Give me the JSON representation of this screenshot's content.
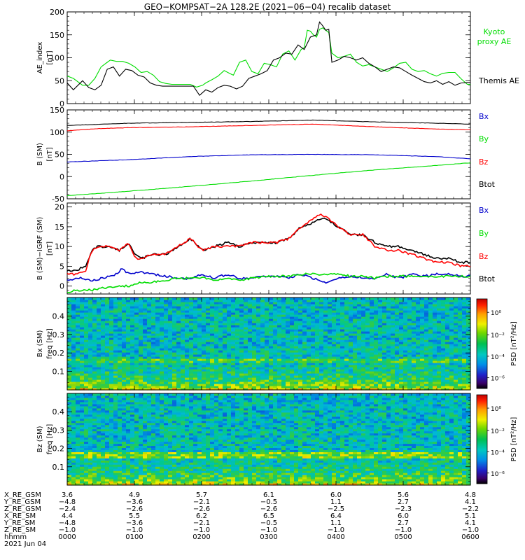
{
  "title": "GEO−KOMPSAT−2A 128.2E (2021−06−04) recalib dataset",
  "colors": {
    "black": "#000000",
    "red": "#ff0000",
    "green": "#00dd00",
    "blue": "#0000cc"
  },
  "chart_data": [
    {
      "type": "line",
      "ylabel_lines": [
        "AE_index",
        "[nT]"
      ],
      "ylim": [
        0,
        200
      ],
      "yticks": [
        0,
        50,
        100,
        150,
        200
      ],
      "xlim": [
        0,
        6.55
      ],
      "legend": [
        "Kyoto proxy AE",
        "Themis AE"
      ],
      "series": [
        {
          "name": "Kyoto proxy AE",
          "color": "#00dd00",
          "x": [
            0.0,
            0.1,
            0.25,
            0.35,
            0.45,
            0.55,
            0.65,
            0.7,
            0.8,
            0.9,
            1.0,
            1.1,
            1.2,
            1.3,
            1.4,
            1.5,
            1.6,
            1.7,
            1.8,
            1.9,
            2.0,
            2.1,
            2.2,
            2.25,
            2.35,
            2.45,
            2.55,
            2.65,
            2.7,
            2.8,
            2.9,
            3.0,
            3.1,
            3.2,
            3.3,
            3.4,
            3.5,
            3.6,
            3.7,
            3.8,
            3.85,
            3.9,
            3.95,
            4.0,
            4.05,
            4.1,
            4.15,
            4.2,
            4.25,
            4.3,
            4.4,
            4.5,
            4.6,
            4.7,
            4.8,
            4.9,
            5.0,
            5.1,
            5.2,
            5.3,
            5.4,
            5.5,
            5.6,
            5.7,
            5.8,
            5.9,
            6.0,
            6.1,
            6.2,
            6.3,
            6.4,
            6.5,
            6.55
          ],
          "y": [
            60,
            55,
            40,
            40,
            55,
            80,
            90,
            95,
            92,
            92,
            88,
            80,
            68,
            70,
            62,
            48,
            44,
            42,
            42,
            42,
            42,
            36,
            40,
            45,
            52,
            60,
            72,
            65,
            62,
            90,
            95,
            70,
            65,
            88,
            85,
            80,
            108,
            115,
            95,
            118,
            122,
            160,
            158,
            150,
            145,
            162,
            165,
            160,
            155,
            110,
            100,
            103,
            108,
            90,
            82,
            85,
            80,
            75,
            70,
            78,
            88,
            90,
            75,
            70,
            72,
            65,
            60,
            66,
            68,
            68,
            54,
            42,
            42
          ]
        },
        {
          "name": "Themis AE",
          "color": "#000000",
          "x": [
            0.0,
            0.1,
            0.25,
            0.35,
            0.45,
            0.55,
            0.65,
            0.75,
            0.85,
            0.95,
            1.05,
            1.15,
            1.25,
            1.35,
            1.45,
            1.55,
            1.65,
            1.75,
            1.85,
            1.95,
            2.05,
            2.15,
            2.25,
            2.35,
            2.45,
            2.55,
            2.65,
            2.75,
            2.85,
            2.95,
            3.05,
            3.15,
            3.25,
            3.35,
            3.45,
            3.55,
            3.65,
            3.75,
            3.85,
            3.95,
            4.05,
            4.1,
            4.15,
            4.2,
            4.25,
            4.3,
            4.4,
            4.5,
            4.6,
            4.7,
            4.8,
            4.9,
            5.0,
            5.1,
            5.2,
            5.3,
            5.4,
            5.5,
            5.6,
            5.7,
            5.8,
            5.9,
            6.0,
            6.1,
            6.2,
            6.3,
            6.4,
            6.5,
            6.55
          ],
          "y": [
            45,
            30,
            50,
            35,
            30,
            40,
            75,
            80,
            60,
            75,
            72,
            62,
            58,
            45,
            40,
            38,
            38,
            38,
            38,
            38,
            38,
            18,
            30,
            25,
            35,
            40,
            38,
            32,
            38,
            55,
            60,
            65,
            72,
            95,
            100,
            110,
            108,
            128,
            118,
            145,
            150,
            178,
            170,
            160,
            162,
            90,
            95,
            103,
            100,
            95,
            100,
            88,
            80,
            70,
            75,
            80,
            78,
            70,
            62,
            55,
            48,
            45,
            50,
            42,
            48,
            40,
            45,
            46,
            46
          ]
        }
      ]
    },
    {
      "type": "line",
      "ylabel_lines": [
        "B (SM)",
        "[nT]"
      ],
      "ylim": [
        -50,
        150
      ],
      "yticks": [
        -50,
        0,
        50,
        100,
        150
      ],
      "xlim": [
        0,
        6.55
      ],
      "legend": [
        "Bx",
        "By",
        "Bz",
        "Btot"
      ],
      "series": [
        {
          "name": "Btot",
          "color": "#000000",
          "x": [
            0,
            1,
            2,
            3,
            4,
            5,
            6,
            6.55
          ],
          "y": [
            115,
            120,
            122,
            124,
            127,
            123,
            120,
            118
          ]
        },
        {
          "name": "Bz",
          "color": "#ff0000",
          "x": [
            0,
            0.5,
            1,
            2,
            3,
            4,
            5,
            6,
            6.55
          ],
          "y": [
            103,
            108,
            110,
            112,
            115,
            118,
            112,
            107,
            105
          ]
        },
        {
          "name": "Bx",
          "color": "#0000cc",
          "x": [
            0,
            1,
            2,
            3,
            4,
            5,
            6,
            6.55
          ],
          "y": [
            33,
            38,
            45,
            49,
            50,
            49,
            45,
            40
          ]
        },
        {
          "name": "By",
          "color": "#00dd00",
          "x": [
            0,
            1,
            2,
            3,
            4,
            5,
            6,
            6.55
          ],
          "y": [
            -43,
            -33,
            -22,
            -10,
            3,
            15,
            25,
            31
          ]
        }
      ]
    },
    {
      "type": "line",
      "ylabel_lines": [
        "B (SM)−IGRF (SM)",
        "[nT]"
      ],
      "ylim": [
        -2,
        21
      ],
      "yticks": [
        0,
        5,
        10,
        15,
        20
      ],
      "xlim": [
        0,
        6.55
      ],
      "legend": [
        "Bx",
        "By",
        "Bz",
        "Btot"
      ],
      "series": [
        {
          "name": "Btot",
          "color": "#000000",
          "x": [
            0.0,
            0.15,
            0.3,
            0.4,
            0.5,
            0.7,
            0.85,
            1.0,
            1.1,
            1.2,
            1.4,
            1.6,
            1.8,
            2.0,
            2.2,
            2.4,
            2.6,
            2.8,
            3.0,
            3.2,
            3.4,
            3.6,
            3.8,
            4.0,
            4.1,
            4.2,
            4.4,
            4.6,
            4.8,
            5.0,
            5.2,
            5.4,
            5.6,
            5.8,
            6.0,
            6.2,
            6.4,
            6.55
          ],
          "y": [
            4,
            4,
            5,
            9,
            10,
            10,
            9,
            11,
            8,
            7,
            8,
            8,
            10,
            12,
            9,
            10,
            11,
            10,
            11,
            11,
            11,
            12,
            15,
            16,
            17,
            17,
            15,
            13,
            13,
            11,
            10,
            10,
            9,
            8,
            7,
            7,
            6,
            6
          ]
        },
        {
          "name": "Bz",
          "color": "#ff0000",
          "x": [
            0.0,
            0.15,
            0.3,
            0.4,
            0.5,
            0.7,
            0.85,
            1.0,
            1.1,
            1.2,
            1.4,
            1.6,
            1.8,
            2.0,
            2.2,
            2.4,
            2.6,
            2.8,
            3.0,
            3.2,
            3.4,
            3.6,
            3.8,
            4.0,
            4.1,
            4.2,
            4.4,
            4.6,
            4.8,
            5.0,
            5.2,
            5.4,
            5.6,
            5.8,
            6.0,
            6.2,
            6.4,
            6.55
          ],
          "y": [
            3,
            3,
            4,
            9,
            10,
            10,
            9,
            11,
            7,
            7,
            8,
            8,
            10,
            12,
            9,
            10,
            10,
            10,
            11,
            11,
            11,
            12,
            15,
            17,
            18,
            17.5,
            15,
            13,
            13,
            10,
            9,
            9,
            8,
            7,
            6,
            6,
            5,
            5
          ]
        },
        {
          "name": "Bx",
          "color": "#0000cc",
          "x": [
            0.0,
            0.2,
            0.4,
            0.6,
            0.8,
            0.9,
            1.0,
            1.2,
            1.4,
            1.6,
            1.8,
            2.0,
            2.2,
            2.4,
            2.6,
            2.8,
            3.0,
            3.2,
            3.4,
            3.6,
            3.8,
            4.0,
            4.2,
            4.4,
            4.6,
            4.8,
            5.0,
            5.2,
            5.4,
            5.6,
            5.8,
            6.0,
            6.2,
            6.4,
            6.55
          ],
          "y": [
            1.5,
            2,
            1.5,
            2,
            3,
            4.5,
            3,
            3.5,
            3,
            2.5,
            2,
            2,
            3,
            2,
            3,
            2,
            2,
            2.5,
            2.5,
            2,
            3,
            2,
            1,
            2,
            2.5,
            2,
            2,
            3,
            2,
            3,
            2.5,
            3,
            3,
            2.5,
            2.5
          ]
        },
        {
          "name": "By",
          "color": "#00dd00",
          "x": [
            0.0,
            0.2,
            0.4,
            0.6,
            0.8,
            1.0,
            1.2,
            1.4,
            1.6,
            1.8,
            2.0,
            2.2,
            2.4,
            2.6,
            2.8,
            3.0,
            3.2,
            3.4,
            3.6,
            3.8,
            4.0,
            4.2,
            4.4,
            4.6,
            4.8,
            5.0,
            5.2,
            5.4,
            5.6,
            5.8,
            6.0,
            6.2,
            6.4,
            6.55
          ],
          "y": [
            -1.5,
            -1,
            -1,
            -0.5,
            0,
            0,
            1,
            1,
            1.5,
            2,
            2,
            2,
            1.5,
            2,
            1.5,
            2,
            2.5,
            2.5,
            2.5,
            3,
            3,
            3,
            3,
            2.5,
            2.5,
            2,
            2.5,
            2.5,
            2.5,
            2.5,
            2.5,
            2.5,
            2.5,
            2.5
          ]
        }
      ]
    },
    {
      "type": "heatmap",
      "ylabel_lines": [
        "Bx (SM)",
        "freq [Hz]"
      ],
      "ylim": [
        0,
        0.5
      ],
      "yticks": [
        0.1,
        0.2,
        0.3,
        0.4
      ],
      "xlim": [
        0,
        6.55
      ],
      "colorbar": {
        "label": "PSD [nT²/Hz]",
        "ticks": [
          "10⁰",
          "10⁻²",
          "10⁻⁴",
          "10⁻⁶"
        ]
      }
    },
    {
      "type": "heatmap",
      "ylabel_lines": [
        "Bz (SM)",
        "freq [Hz]"
      ],
      "ylim": [
        0,
        0.5
      ],
      "yticks": [
        0.1,
        0.2,
        0.3,
        0.4
      ],
      "xlim": [
        0,
        6.55
      ],
      "colorbar": {
        "label": "PSD [nT²/Hz]",
        "ticks": [
          "10⁰",
          "10⁻²",
          "10⁻⁴",
          "10⁻⁶"
        ]
      }
    }
  ],
  "orbit_table": {
    "rows": [
      {
        "label": "X_RE_GSM",
        "values": [
          "3.6",
          "4.9",
          "5.7",
          "6.1",
          "6.0",
          "5.6",
          "4.8"
        ]
      },
      {
        "label": "Y_RE_GSM",
        "values": [
          "−4.8",
          "−3.6",
          "−2.1",
          "−0.5",
          "1.1",
          "2.7",
          "4.1"
        ]
      },
      {
        "label": "Z_RE_GSM",
        "values": [
          "−2.4",
          "−2.6",
          "−2.6",
          "−2.6",
          "−2.5",
          "−2.3",
          "−2.2"
        ]
      },
      {
        "label": "X_RE_SM",
        "values": [
          "4.4",
          "5.5",
          "6.2",
          "6.5",
          "6.4",
          "6.0",
          "5.1"
        ]
      },
      {
        "label": "Y_RE_SM",
        "values": [
          "−4.8",
          "−3.6",
          "−2.1",
          "−0.5",
          "1.1",
          "2.7",
          "4.1"
        ]
      },
      {
        "label": "Z_RE_SM",
        "values": [
          "−1.0",
          "−1.0",
          "−1.0",
          "−1.0",
          "−1.0",
          "−1.0",
          "−1.0"
        ]
      },
      {
        "label": "hhmm",
        "values": [
          "0000",
          "0100",
          "0200",
          "0300",
          "0400",
          "0500",
          "0600"
        ]
      }
    ],
    "date": "2021 Jun 04"
  }
}
